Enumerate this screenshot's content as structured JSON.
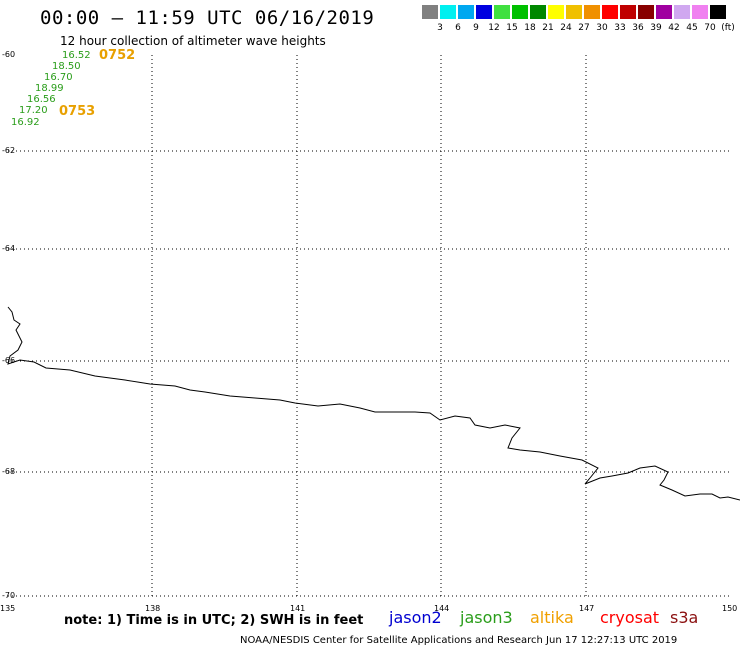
{
  "title": "00:00 – 11:59 UTC 06/16/2019",
  "subtitle": "12 hour collection of altimeter wave heights",
  "legend": {
    "colors": [
      "#808080",
      "#00f0f0",
      "#00a8f0",
      "#0000e0",
      "#40e040",
      "#00c000",
      "#008800",
      "#ffff00",
      "#f0c000",
      "#f09000",
      "#ff0000",
      "#c00000",
      "#880000",
      "#a000a0",
      "#d0a8f0",
      "#f080f0",
      "#000000"
    ],
    "labels": [
      "3",
      "6",
      "9",
      "12",
      "15",
      "18",
      "21",
      "24",
      "27",
      "30",
      "33",
      "36",
      "39",
      "42",
      "45",
      "70",
      "(ft)"
    ]
  },
  "axes": {
    "y_labels": [
      "-60",
      "-62",
      "-64",
      "-66",
      "-68",
      "-70"
    ],
    "x_labels": [
      "135",
      "138",
      "141",
      "144",
      "147",
      "150"
    ]
  },
  "wave_heights": [
    "16.52",
    "18.50",
    "16.70",
    "18.99",
    "16.56",
    "17.20",
    "16.92"
  ],
  "times": [
    "0752",
    "0753"
  ],
  "note": "note: 1) Time is in UTC; 2) SWH is in feet",
  "satellites": [
    {
      "name": "jason2",
      "color": "#0000d0"
    },
    {
      "name": "jason3",
      "color": "#2a9d1a"
    },
    {
      "name": "altika",
      "color": "#f0a000"
    },
    {
      "name": "cryosat",
      "color": "#ff0000"
    },
    {
      "name": "s3a",
      "color": "#8b1010"
    }
  ],
  "credit": "NOAA/NESDIS Center for Satellite Applications and Research    Jun 17 12:27:13 UTC 2019"
}
